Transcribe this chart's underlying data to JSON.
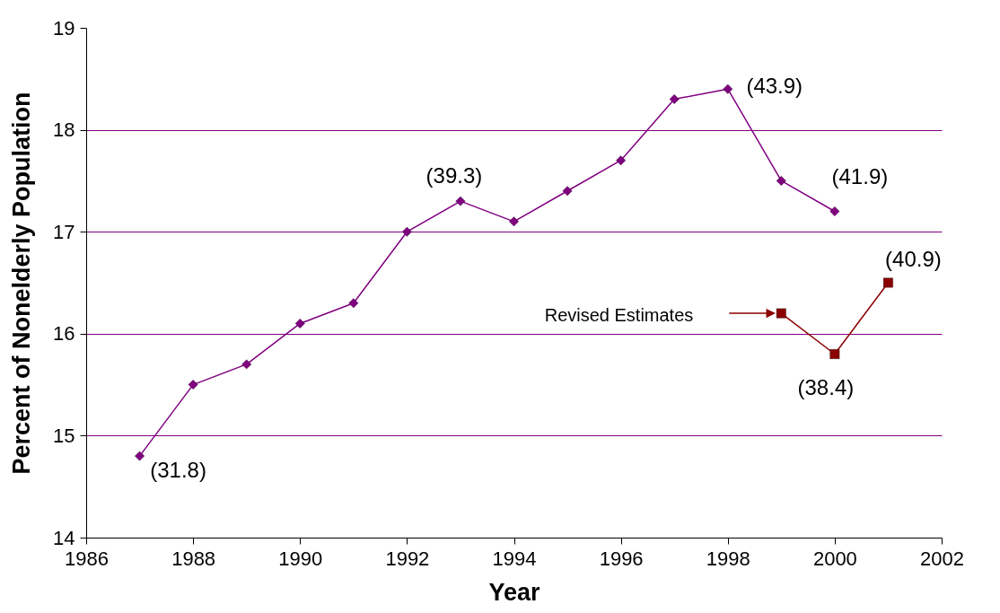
{
  "chart_data": {
    "type": "line",
    "xlabel": "Year",
    "ylabel": "Percent of Nonelderly Population",
    "xlim": [
      1986,
      2002
    ],
    "xticks": [
      1986,
      1988,
      1990,
      1992,
      1994,
      1996,
      1998,
      2000,
      2002
    ],
    "ylim": [
      14,
      19
    ],
    "yticks": [
      14,
      15,
      16,
      17,
      18,
      19
    ],
    "grid": "y",
    "series": [
      {
        "color": "#800080",
        "marker": "diamond",
        "x": [
          1987,
          1988,
          1989,
          1990,
          1991,
          1992,
          1993,
          1994,
          1995,
          1996,
          1997,
          1998,
          1999,
          2000
        ],
        "values": [
          14.8,
          15.5,
          15.7,
          16.1,
          16.3,
          17.0,
          17.3,
          17.1,
          17.4,
          17.7,
          18.3,
          18.4,
          17.5,
          17.2
        ]
      },
      {
        "color": "#8b0000",
        "marker": "square",
        "x": [
          1999,
          2000,
          2001
        ],
        "values": [
          16.2,
          15.8,
          16.5
        ]
      }
    ],
    "annotations": [
      {
        "text": "(31.8)",
        "x": 1987,
        "y": 14.8
      },
      {
        "text": "(39.3)",
        "x": 1993,
        "y": 17.3
      },
      {
        "text": "(43.9)",
        "x": 1998,
        "y": 18.4
      },
      {
        "text": "(41.9)",
        "x": 2000,
        "y": 17.2
      },
      {
        "text": "(38.4)",
        "x": 2000,
        "y": 15.8
      },
      {
        "text": "(40.9)",
        "x": 2001,
        "y": 16.5
      },
      "Revised Estimates"
    ]
  }
}
